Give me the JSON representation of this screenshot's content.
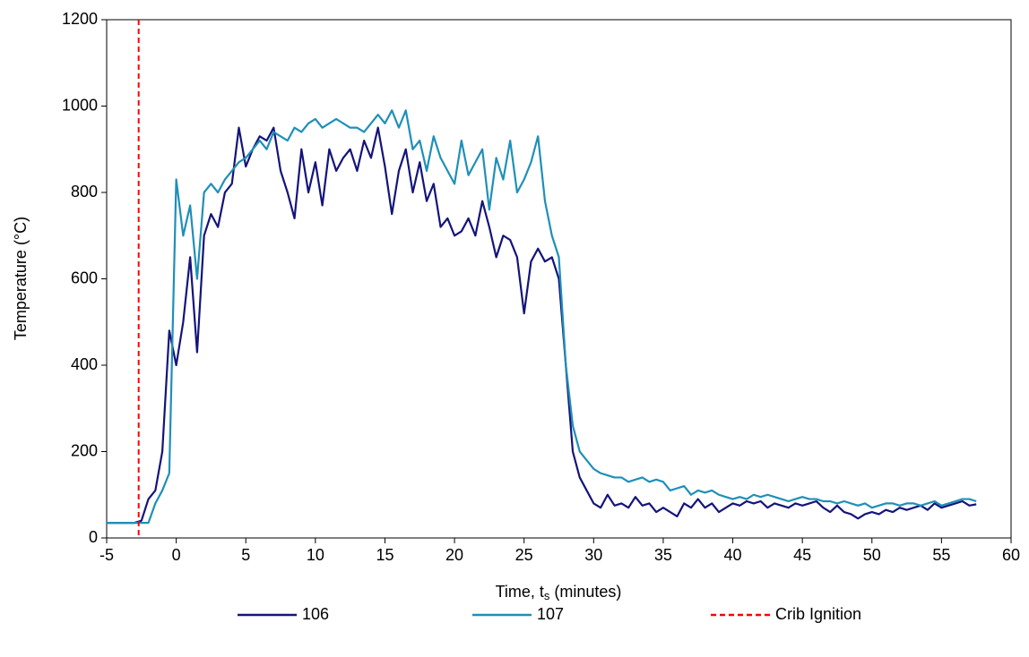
{
  "chart_data": {
    "type": "line",
    "xlabel": {
      "text": "Time, t",
      "subscript": "s",
      "suffix": " (minutes)"
    },
    "ylabel": "Temperature (°C)",
    "xlim": [
      -5,
      60
    ],
    "xticks": [
      -5,
      0,
      5,
      10,
      15,
      20,
      25,
      30,
      35,
      40,
      45,
      50,
      55,
      60
    ],
    "ylim": [
      0,
      1200
    ],
    "yticks": [
      0,
      200,
      400,
      600,
      800,
      1000,
      1200
    ],
    "grid": false,
    "legend": "bottom",
    "x": [
      -5,
      -4.5,
      -4,
      -3.5,
      -3,
      -2.5,
      -2,
      -1.5,
      -1,
      -0.5,
      0,
      0.5,
      1,
      1.5,
      2,
      2.5,
      3,
      3.5,
      4,
      4.5,
      5,
      5.5,
      6,
      6.5,
      7,
      7.5,
      8,
      8.5,
      9,
      9.5,
      10,
      10.5,
      11,
      11.5,
      12,
      12.5,
      13,
      13.5,
      14,
      14.5,
      15,
      15.5,
      16,
      16.5,
      17,
      17.5,
      18,
      18.5,
      19,
      19.5,
      20,
      20.5,
      21,
      21.5,
      22,
      22.5,
      23,
      23.5,
      24,
      24.5,
      25,
      25.5,
      26,
      26.5,
      27,
      27.5,
      28,
      28.5,
      29,
      29.5,
      30,
      30.5,
      31,
      31.5,
      32,
      32.5,
      33,
      33.5,
      34,
      34.5,
      35,
      35.5,
      36,
      36.5,
      37,
      37.5,
      38,
      38.5,
      39,
      39.5,
      40,
      40.5,
      41,
      41.5,
      42,
      42.5,
      43,
      43.5,
      44,
      44.5,
      45,
      45.5,
      46,
      46.5,
      47,
      47.5,
      48,
      48.5,
      49,
      49.5,
      50,
      50.5,
      51,
      51.5,
      52,
      52.5,
      53,
      53.5,
      54,
      54.5,
      55,
      55.5,
      56,
      56.5,
      57,
      57.5
    ],
    "series": [
      {
        "name": "106",
        "color": "#14147a",
        "values": [
          35,
          35,
          35,
          35,
          35,
          40,
          90,
          110,
          200,
          480,
          400,
          500,
          650,
          430,
          700,
          750,
          720,
          800,
          820,
          950,
          860,
          900,
          930,
          920,
          950,
          850,
          800,
          740,
          900,
          800,
          870,
          770,
          900,
          850,
          880,
          900,
          850,
          920,
          880,
          950,
          860,
          750,
          850,
          900,
          800,
          870,
          780,
          820,
          720,
          740,
          700,
          710,
          740,
          700,
          780,
          720,
          650,
          700,
          690,
          650,
          520,
          640,
          670,
          640,
          650,
          600,
          400,
          200,
          140,
          110,
          80,
          70,
          100,
          75,
          80,
          70,
          95,
          75,
          80,
          60,
          70,
          60,
          50,
          80,
          70,
          90,
          70,
          80,
          60,
          70,
          80,
          75,
          85,
          80,
          85,
          70,
          80,
          75,
          70,
          80,
          75,
          80,
          85,
          70,
          60,
          75,
          60,
          55,
          45,
          55,
          60,
          55,
          65,
          60,
          70,
          65,
          70,
          75,
          65,
          80,
          70,
          75,
          80,
          85,
          75,
          78
        ]
      },
      {
        "name": "107",
        "color": "#1f8fb8",
        "values": [
          35,
          35,
          35,
          35,
          35,
          35,
          35,
          80,
          110,
          150,
          830,
          700,
          770,
          600,
          800,
          820,
          800,
          830,
          850,
          870,
          880,
          900,
          920,
          900,
          940,
          930,
          920,
          950,
          940,
          960,
          970,
          950,
          960,
          970,
          960,
          950,
          950,
          940,
          960,
          980,
          960,
          990,
          950,
          990,
          900,
          920,
          850,
          930,
          880,
          850,
          820,
          920,
          840,
          870,
          900,
          760,
          880,
          830,
          920,
          800,
          830,
          870,
          930,
          780,
          700,
          650,
          400,
          260,
          200,
          180,
          160,
          150,
          145,
          140,
          140,
          130,
          135,
          140,
          130,
          135,
          130,
          110,
          115,
          120,
          100,
          110,
          105,
          110,
          100,
          95,
          90,
          95,
          90,
          100,
          95,
          100,
          95,
          90,
          85,
          90,
          95,
          90,
          90,
          85,
          85,
          80,
          85,
          80,
          75,
          80,
          70,
          75,
          80,
          80,
          75,
          80,
          80,
          75,
          80,
          85,
          75,
          80,
          85,
          90,
          90,
          85
        ]
      }
    ],
    "vlines": [
      {
        "name": "Crib Ignition",
        "x": -2.7,
        "color": "#ff0000"
      }
    ]
  }
}
